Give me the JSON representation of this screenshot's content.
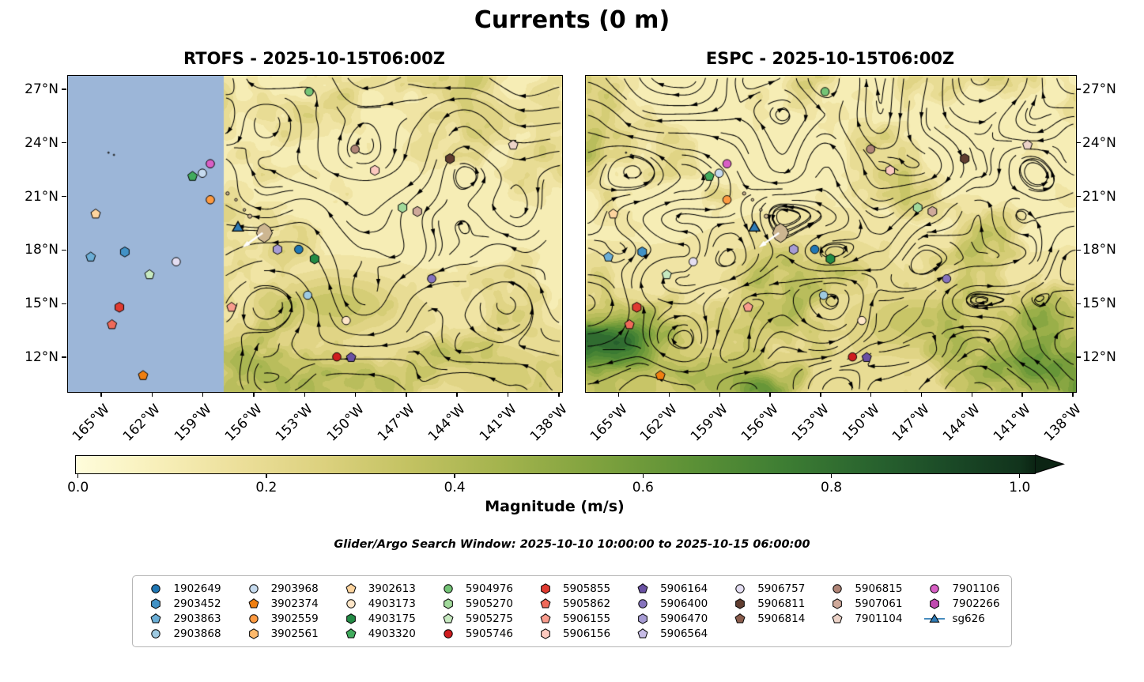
{
  "figure": {
    "title": "Currents (0 m)",
    "search_window": "Glider/Argo Search Window: 2025-10-10 10:00:00 to 2025-10-15 06:00:00"
  },
  "chart_data": {
    "type": "map-streamplot",
    "description": "Two-panel comparison of modeled surface currents (streamlines over current-magnitude shading) with Argo float and glider positions overlaid",
    "panels": [
      {
        "title": "RTOFS - 2025-10-15T06:00Z",
        "lat_labels_side": "left",
        "masked_region": {
          "west_fraction": 0.315,
          "color": "#9cb6d8"
        }
      },
      {
        "title": "ESPC - 2025-10-15T06:00Z",
        "lat_labels_side": "right",
        "masked_region": null
      }
    ],
    "lat_ticks": [
      "27°N",
      "24°N",
      "21°N",
      "18°N",
      "15°N",
      "12°N"
    ],
    "lon_ticks": [
      "165°W",
      "162°W",
      "159°W",
      "156°W",
      "153°W",
      "150°W",
      "147°W",
      "144°W",
      "141°W",
      "138°W"
    ],
    "colorbar": {
      "label": "Magnitude (m/s)",
      "ticks": [
        "0.0",
        "0.2",
        "0.4",
        "0.6",
        "0.8",
        "1.0"
      ],
      "min": 0.0,
      "max": 1.0,
      "extend": "max",
      "extend_color": "#0b2413",
      "colormap_stops": [
        [
          0.0,
          "#fefcda"
        ],
        [
          0.08,
          "#f8f0bb"
        ],
        [
          0.17,
          "#ecdf9a"
        ],
        [
          0.26,
          "#dcd17e"
        ],
        [
          0.35,
          "#c3c262"
        ],
        [
          0.45,
          "#a3b34d"
        ],
        [
          0.55,
          "#7fa23e"
        ],
        [
          0.65,
          "#5c9136"
        ],
        [
          0.75,
          "#3d7d33"
        ],
        [
          0.85,
          "#27612e"
        ],
        [
          0.93,
          "#1a4826"
        ],
        [
          1.0,
          "#11331c"
        ]
      ]
    },
    "markers": [
      {
        "id": "5904976",
        "x": 0.488,
        "y": 0.05
      },
      {
        "id": "7901106",
        "x": 0.288,
        "y": 0.278
      },
      {
        "id": "2903968",
        "x": 0.272,
        "y": 0.308
      },
      {
        "id": "4903320",
        "x": 0.252,
        "y": 0.318
      },
      {
        "id": "3902559",
        "x": 0.288,
        "y": 0.392
      },
      {
        "id": "3902613",
        "x": 0.056,
        "y": 0.437
      },
      {
        "id": "5906815",
        "x": 0.581,
        "y": 0.232
      },
      {
        "id": "5906811",
        "x": 0.773,
        "y": 0.262
      },
      {
        "id": "7901104",
        "x": 0.901,
        "y": 0.219
      },
      {
        "id": "5906156",
        "x": 0.621,
        "y": 0.299
      },
      {
        "id": "5905270",
        "x": 0.677,
        "y": 0.417
      },
      {
        "id": "5907061",
        "x": 0.707,
        "y": 0.429
      },
      {
        "id": "2903452",
        "x": 0.115,
        "y": 0.557
      },
      {
        "id": "2903863",
        "x": 0.046,
        "y": 0.573
      },
      {
        "id": "5906757",
        "x": 0.219,
        "y": 0.588
      },
      {
        "id": "5905275",
        "x": 0.165,
        "y": 0.629
      },
      {
        "id": "5905855",
        "x": 0.104,
        "y": 0.732
      },
      {
        "id": "5905862",
        "x": 0.089,
        "y": 0.787
      },
      {
        "id": "3902374",
        "x": 0.152,
        "y": 0.948
      },
      {
        "id": "5906470",
        "x": 0.424,
        "y": 0.549
      },
      {
        "id": "1902649",
        "x": 0.467,
        "y": 0.549
      },
      {
        "id": "4903175",
        "x": 0.499,
        "y": 0.579
      },
      {
        "id": "2903868",
        "x": 0.485,
        "y": 0.694
      },
      {
        "id": "5906155",
        "x": 0.331,
        "y": 0.732
      },
      {
        "id": "4903173",
        "x": 0.563,
        "y": 0.774
      },
      {
        "id": "5905746",
        "x": 0.544,
        "y": 0.889
      },
      {
        "id": "5906164",
        "x": 0.573,
        "y": 0.891
      },
      {
        "id": "5906400",
        "x": 0.736,
        "y": 0.642
      },
      {
        "id": "sg626",
        "x": 0.344,
        "y": 0.481
      }
    ]
  },
  "legend": {
    "ncols": 9,
    "entries": [
      {
        "id": "1902649",
        "shape": "circle",
        "color": "#2077b4"
      },
      {
        "id": "2903452",
        "shape": "hexagon",
        "color": "#4292c6"
      },
      {
        "id": "2903863",
        "shape": "pentagon",
        "color": "#6baed6"
      },
      {
        "id": "2903868",
        "shape": "circle",
        "color": "#9ecae1"
      },
      {
        "id": "2903968",
        "shape": "circle",
        "color": "#c6dbef"
      },
      {
        "id": "3902374",
        "shape": "pentagon",
        "color": "#f07f10"
      },
      {
        "id": "3902559",
        "shape": "circle",
        "color": "#fd9a41"
      },
      {
        "id": "3902561",
        "shape": "hexagon",
        "color": "#fdb96b"
      },
      {
        "id": "3902613",
        "shape": "pentagon",
        "color": "#fdd49e"
      },
      {
        "id": "4903173",
        "shape": "circle",
        "color": "#fee6c8"
      },
      {
        "id": "4903175",
        "shape": "hexagon",
        "color": "#238b45"
      },
      {
        "id": "4903320",
        "shape": "pentagon",
        "color": "#41ab5d"
      },
      {
        "id": "5904976",
        "shape": "circle",
        "color": "#74c476"
      },
      {
        "id": "5905270",
        "shape": "hexagon",
        "color": "#a1d99b"
      },
      {
        "id": "5905275",
        "shape": "pentagon",
        "color": "#c7e9c0"
      },
      {
        "id": "5905746",
        "shape": "circle",
        "color": "#cf1c1f"
      },
      {
        "id": "5905855",
        "shape": "hexagon",
        "color": "#e03b31"
      },
      {
        "id": "5905862",
        "shape": "pentagon",
        "color": "#ef6a5a"
      },
      {
        "id": "5906155",
        "shape": "pentagon",
        "color": "#f99c8d"
      },
      {
        "id": "5906156",
        "shape": "hexagon",
        "color": "#fcc9bf"
      },
      {
        "id": "5906164",
        "shape": "pentagon",
        "color": "#6a51a3"
      },
      {
        "id": "5906400",
        "shape": "circle",
        "color": "#8673bd"
      },
      {
        "id": "5906470",
        "shape": "hexagon",
        "color": "#a79cd4"
      },
      {
        "id": "5906564",
        "shape": "pentagon",
        "color": "#c7bce6"
      },
      {
        "id": "5906757",
        "shape": "circle",
        "color": "#e4def2"
      },
      {
        "id": "5906811",
        "shape": "hexagon",
        "color": "#603d30"
      },
      {
        "id": "5906814",
        "shape": "pentagon",
        "color": "#8a5d4d"
      },
      {
        "id": "5906815",
        "shape": "circle",
        "color": "#b08577"
      },
      {
        "id": "5907061",
        "shape": "hexagon",
        "color": "#cfa99a"
      },
      {
        "id": "7901104",
        "shape": "pentagon",
        "color": "#ecd3c8"
      },
      {
        "id": "7901106",
        "shape": "circle",
        "color": "#d95fc5"
      },
      {
        "id": "7902266",
        "shape": "hexagon",
        "color": "#c04ab0"
      },
      {
        "id": "sg626",
        "shape": "glider",
        "color": "#2e7bb5"
      }
    ]
  }
}
